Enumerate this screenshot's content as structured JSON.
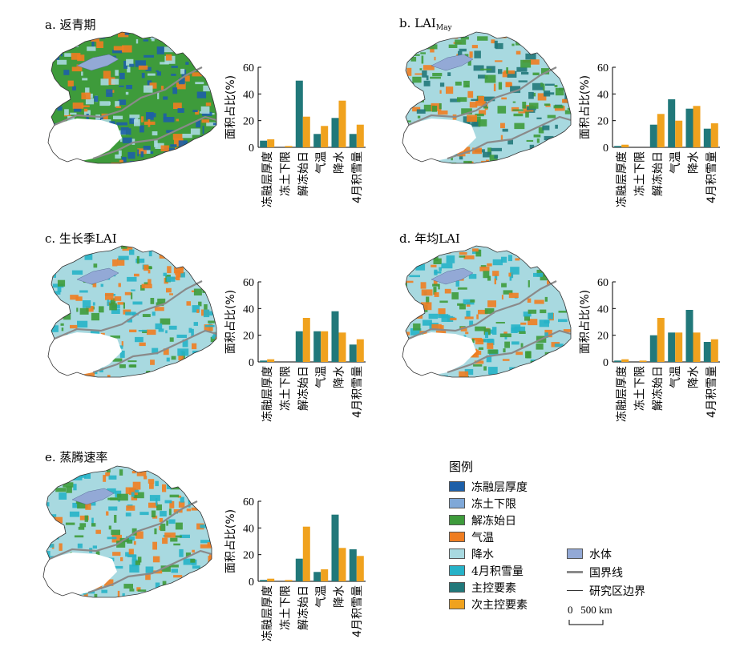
{
  "panels": [
    {
      "id": "a",
      "label": "a. 返青期",
      "label_main": "a. 返青期",
      "label_sub": ""
    },
    {
      "id": "b",
      "label": "b. LAIMay",
      "label_main": "b. LAI",
      "label_sub": "May"
    },
    {
      "id": "c",
      "label": "c. 生长季LAI",
      "label_main": "c. 生长季LAI",
      "label_sub": ""
    },
    {
      "id": "d",
      "label": "d. 年均LAI",
      "label_main": "d. 年均LAI",
      "label_sub": ""
    },
    {
      "id": "e",
      "label": "e. 蒸腾速率",
      "label_main": "e. 蒸腾速率",
      "label_sub": ""
    }
  ],
  "chart_data": [
    {
      "type": "bar",
      "panel": "a",
      "categories": [
        "冻融层厚度",
        "冻土下限",
        "解冻始日",
        "气温",
        "降水",
        "4月积雪量"
      ],
      "ylabel": "面积占比(%)",
      "ylim": [
        0,
        60
      ],
      "yticks": [
        0,
        20,
        40,
        60
      ],
      "series": [
        {
          "name": "主控要素",
          "values": [
            5,
            0,
            50,
            10,
            22,
            10
          ]
        },
        {
          "name": "次主控要素",
          "values": [
            6,
            1,
            23,
            16,
            35,
            17
          ]
        }
      ]
    },
    {
      "type": "bar",
      "panel": "b",
      "categories": [
        "冻融层厚度",
        "冻土下限",
        "解冻始日",
        "气温",
        "降水",
        "4月积雪量"
      ],
      "ylabel": "面积占比(%)",
      "ylim": [
        0,
        60
      ],
      "yticks": [
        0,
        20,
        40,
        60
      ],
      "series": [
        {
          "name": "主控要素",
          "values": [
            1,
            0,
            17,
            36,
            29,
            14
          ]
        },
        {
          "name": "次主控要素",
          "values": [
            2,
            0,
            25,
            20,
            31,
            18
          ]
        }
      ]
    },
    {
      "type": "bar",
      "panel": "c",
      "categories": [
        "冻融层厚度",
        "冻土下限",
        "解冻始日",
        "气温",
        "降水",
        "4月积雪量"
      ],
      "ylabel": "面积占比(%)",
      "ylim": [
        0,
        60
      ],
      "yticks": [
        0,
        20,
        40,
        60
      ],
      "series": [
        {
          "name": "主控要素",
          "values": [
            1,
            0,
            23,
            23,
            38,
            13
          ]
        },
        {
          "name": "次主控要素",
          "values": [
            2,
            0,
            33,
            23,
            22,
            17
          ]
        }
      ]
    },
    {
      "type": "bar",
      "panel": "d",
      "categories": [
        "冻融层厚度",
        "冻土下限",
        "解冻始日",
        "气温",
        "降水",
        "4月积雪量"
      ],
      "ylabel": "面积占比(%)",
      "ylim": [
        0,
        60
      ],
      "yticks": [
        0,
        20,
        40,
        60
      ],
      "series": [
        {
          "name": "主控要素",
          "values": [
            1,
            0,
            20,
            22,
            39,
            15
          ]
        },
        {
          "name": "次主控要素",
          "values": [
            2,
            1,
            33,
            22,
            22,
            17
          ]
        }
      ]
    },
    {
      "type": "bar",
      "panel": "e",
      "categories": [
        "冻融层厚度",
        "冻土下限",
        "解冻始日",
        "气温",
        "降水",
        "4月积雪量"
      ],
      "ylabel": "面积占比(%)",
      "ylim": [
        0,
        60
      ],
      "yticks": [
        0,
        20,
        40,
        60
      ],
      "series": [
        {
          "name": "主控要素",
          "values": [
            1,
            0,
            17,
            7,
            50,
            24
          ]
        },
        {
          "name": "次主控要素",
          "values": [
            2,
            1,
            41,
            9,
            25,
            19
          ]
        }
      ]
    }
  ],
  "series_colors": {
    "主控要素": "#21787a",
    "次主控要素": "#f0a21e"
  },
  "legend": {
    "title": "图例",
    "items": [
      {
        "label": "冻融层厚度",
        "color": "#1d5fa8"
      },
      {
        "label": "冻土下限",
        "color": "#7fa8d8"
      },
      {
        "label": "解冻始日",
        "color": "#3e9b3b"
      },
      {
        "label": "气温",
        "color": "#ef7d21"
      },
      {
        "label": "降水",
        "color": "#a8d9e0"
      },
      {
        "label": "4月积雪量",
        "color": "#26b2c8"
      },
      {
        "label": "主控要素",
        "color": "#21787a"
      },
      {
        "label": "次主控要素",
        "color": "#f0a21e"
      }
    ],
    "extra": [
      {
        "label": "水体",
        "kind": "swatch",
        "color": "#93a9d6"
      },
      {
        "label": "国界线",
        "kind": "line",
        "color": "#8a8a8a"
      },
      {
        "label": "研究区边界",
        "kind": "thinline",
        "color": "#333333"
      }
    ],
    "scale_label": "0   500 km"
  },
  "map_colors": {
    "a": {
      "base": "#3e9b3b",
      "mix": [
        "#ef7d21",
        "#a8d9e0",
        "#1d5fa8"
      ]
    },
    "b": {
      "base": "#a8d9e0",
      "mix": [
        "#ef7d21",
        "#3e9b3b",
        "#21787a"
      ]
    },
    "c": {
      "base": "#a8d9e0",
      "mix": [
        "#3e9b3b",
        "#ef7d21",
        "#26b2c8"
      ]
    },
    "d": {
      "base": "#a8d9e0",
      "mix": [
        "#3e9b3b",
        "#ef7d21",
        "#26b2c8"
      ]
    },
    "e": {
      "base": "#a8d9e0",
      "mix": [
        "#26b2c8",
        "#ef7d21",
        "#3e9b3b"
      ]
    }
  }
}
